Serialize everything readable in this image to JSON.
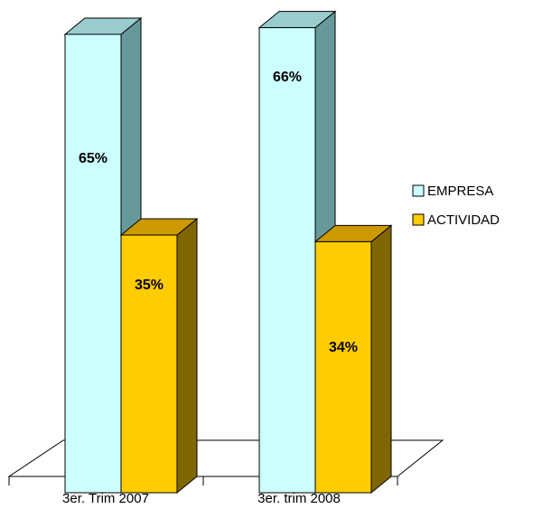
{
  "chart_data": {
    "type": "bar3d",
    "categories": [
      "3er. Trim 2007",
      "3er.  trim 2008"
    ],
    "series": [
      {
        "name": "EMPRESA",
        "color": "#ccffff",
        "values": [
          65,
          66
        ],
        "value_labels": [
          "65%",
          "66%"
        ]
      },
      {
        "name": "ACTIVIDAD",
        "color": "#ffcc00",
        "values": [
          35,
          34
        ],
        "value_labels": [
          "35%",
          "34%"
        ]
      }
    ],
    "legend": "right"
  }
}
